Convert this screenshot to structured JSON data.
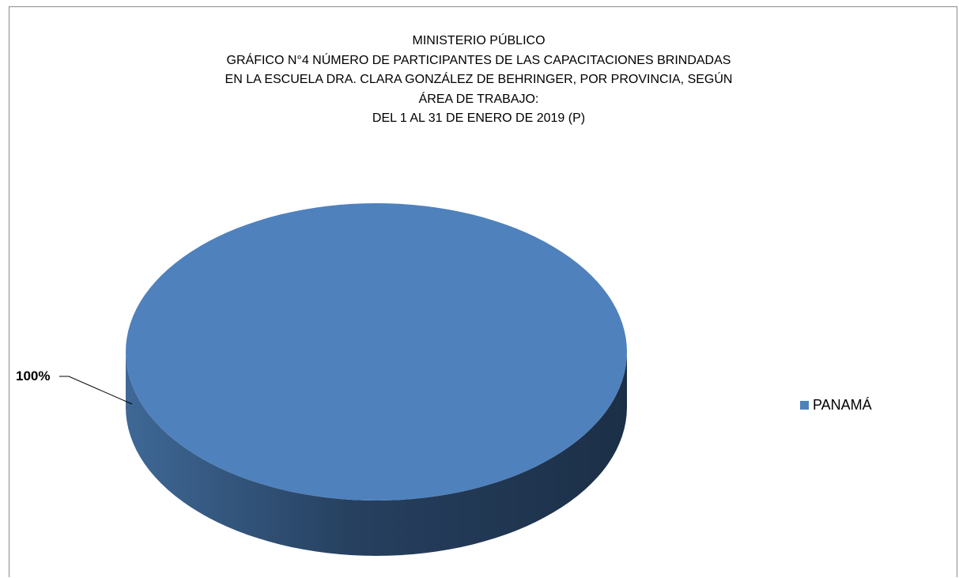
{
  "chart_data": {
    "type": "pie",
    "title_lines": [
      "MINISTERIO PÚBLICO",
      "GRÁFICO N°4  NÚMERO DE PARTICIPANTES DE LAS CAPACITACIONES BRINDADAS",
      "EN LA ESCUELA  DRA. CLARA GONZÁLEZ DE BEHRINGER, POR PROVINCIA, SEGÚN",
      "ÁREA DE TRABAJO:",
      "DEL 1 AL 31 DE ENERO DE 2019 (P)"
    ],
    "slices": [
      {
        "label": "PANAMÁ",
        "value": 100,
        "data_label": "100%",
        "color": "#4f81bd"
      }
    ],
    "legend_position": "right",
    "style": "3d"
  }
}
